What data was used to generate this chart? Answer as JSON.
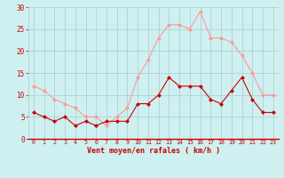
{
  "hours": [
    0,
    1,
    2,
    3,
    4,
    5,
    6,
    7,
    8,
    9,
    10,
    11,
    12,
    13,
    14,
    15,
    16,
    17,
    18,
    19,
    20,
    21,
    22,
    23
  ],
  "wind_avg": [
    6,
    5,
    4,
    5,
    3,
    4,
    3,
    4,
    4,
    4,
    8,
    8,
    10,
    14,
    12,
    12,
    12,
    9,
    8,
    11,
    14,
    9,
    6,
    6
  ],
  "wind_gust": [
    12,
    11,
    9,
    8,
    7,
    5,
    5,
    3,
    5,
    7,
    14,
    18,
    23,
    26,
    26,
    25,
    29,
    23,
    23,
    22,
    19,
    15,
    10,
    10
  ],
  "bg_color": "#cef0f0",
  "grid_color": "#aacccc",
  "avg_color": "#cc0000",
  "gust_color": "#ff9999",
  "xlabel": "Vent moyen/en rafales ( km/h )",
  "ylim": [
    0,
    30
  ],
  "yticks": [
    0,
    5,
    10,
    15,
    20,
    25,
    30
  ],
  "xlim": [
    -0.5,
    23.5
  ]
}
